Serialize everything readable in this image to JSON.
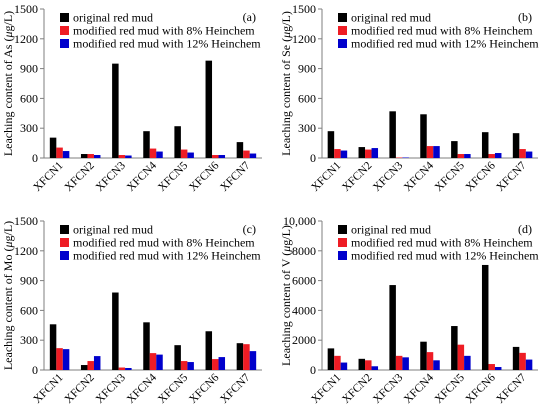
{
  "chart_data": [
    {
      "type": "bar",
      "panel_label": "(a)",
      "ylabel": "Leaching content of As (μg/L)",
      "ylabel_parts": [
        "Leaching content of As (",
        "μ",
        "g/L)"
      ],
      "ylim": [
        0,
        1500
      ],
      "yticks": [
        "0",
        "300",
        "600",
        "900",
        "1200",
        "1500"
      ],
      "ytick_values": [
        0,
        300,
        600,
        900,
        1200,
        1500
      ],
      "categories": [
        "XFCN1",
        "XFCN2",
        "XFCN3",
        "XFCN4",
        "XFCN5",
        "XFCN6",
        "XFCN7"
      ],
      "series": [
        {
          "name": "original red mud",
          "values": [
            205,
            40,
            950,
            270,
            320,
            980,
            160
          ]
        },
        {
          "name": "modified red mud with 8% Heinchem",
          "values": [
            105,
            40,
            30,
            95,
            85,
            30,
            75
          ]
        },
        {
          "name": "modified red mud with 12% Heinchem",
          "values": [
            70,
            30,
            25,
            65,
            55,
            30,
            45
          ]
        }
      ]
    },
    {
      "type": "bar",
      "panel_label": "(b)",
      "ylabel": "Leaching content of Se (μg/L)",
      "ylabel_parts": [
        "Leaching content of Se (",
        "μ",
        "g/L)"
      ],
      "ylim": [
        0,
        1500
      ],
      "yticks": [
        "0",
        "300",
        "600",
        "900",
        "1200",
        "1500"
      ],
      "ytick_values": [
        0,
        300,
        600,
        900,
        1200,
        1500
      ],
      "categories": [
        "XFCN1",
        "XFCN2",
        "XFCN3",
        "XFCN4",
        "XFCN5",
        "XFCN6",
        "XFCN7"
      ],
      "series": [
        {
          "name": "original red mud",
          "values": [
            270,
            110,
            470,
            440,
            170,
            260,
            250
          ]
        },
        {
          "name": "modified red mud with 8% Heinchem",
          "values": [
            90,
            85,
            5,
            120,
            40,
            40,
            90
          ]
        },
        {
          "name": "modified red mud with 12% Heinchem",
          "values": [
            75,
            100,
            5,
            120,
            40,
            50,
            65
          ]
        }
      ]
    },
    {
      "type": "bar",
      "panel_label": "(c)",
      "ylabel": "Leaching content of Mo (μg/L)",
      "ylabel_parts": [
        "Leaching content of Mo (",
        "μ",
        "g/L)"
      ],
      "ylim": [
        0,
        1500
      ],
      "yticks": [
        "0",
        "300",
        "600",
        "900",
        "1200",
        "1500"
      ],
      "ytick_values": [
        0,
        300,
        600,
        900,
        1200,
        1500
      ],
      "categories": [
        "XFCN1",
        "XFCN2",
        "XFCN3",
        "XFCN4",
        "XFCN5",
        "XFCN6",
        "XFCN7"
      ],
      "series": [
        {
          "name": "original red mud",
          "values": [
            460,
            50,
            780,
            480,
            250,
            390,
            270
          ]
        },
        {
          "name": "modified red mud with 8% Heinchem",
          "values": [
            220,
            90,
            25,
            170,
            90,
            110,
            260
          ]
        },
        {
          "name": "modified red mud with 12% Heinchem",
          "values": [
            210,
            140,
            20,
            155,
            80,
            130,
            190
          ]
        }
      ]
    },
    {
      "type": "bar",
      "panel_label": "(d)",
      "ylabel": "Leaching content of V (μg/L)",
      "ylabel_parts": [
        "Leaching content of V (",
        "μ",
        "g/L)"
      ],
      "ylim": [
        0,
        10000
      ],
      "yticks": [
        "0",
        "2000",
        "4000",
        "6000",
        "8000",
        "10,000"
      ],
      "ytick_values": [
        0,
        2000,
        4000,
        6000,
        8000,
        10000
      ],
      "categories": [
        "XFCN1",
        "XFCN2",
        "XFCN3",
        "XFCN4",
        "XFCN5",
        "XFCN6",
        "XFCN7"
      ],
      "series": [
        {
          "name": "original red mud",
          "values": [
            1450,
            750,
            5700,
            1900,
            2950,
            7050,
            1550
          ]
        },
        {
          "name": "modified red mud with 8% Heinchem",
          "values": [
            950,
            650,
            950,
            1200,
            1700,
            400,
            1150
          ]
        },
        {
          "name": "modified red mud with 12% Heinchem",
          "values": [
            500,
            250,
            850,
            650,
            950,
            200,
            700
          ]
        }
      ]
    }
  ],
  "colors": {
    "original": "#000000",
    "eight_percent": "#ee1c24",
    "twelve_percent": "#0000cc",
    "axis": "#7f7f7f"
  }
}
